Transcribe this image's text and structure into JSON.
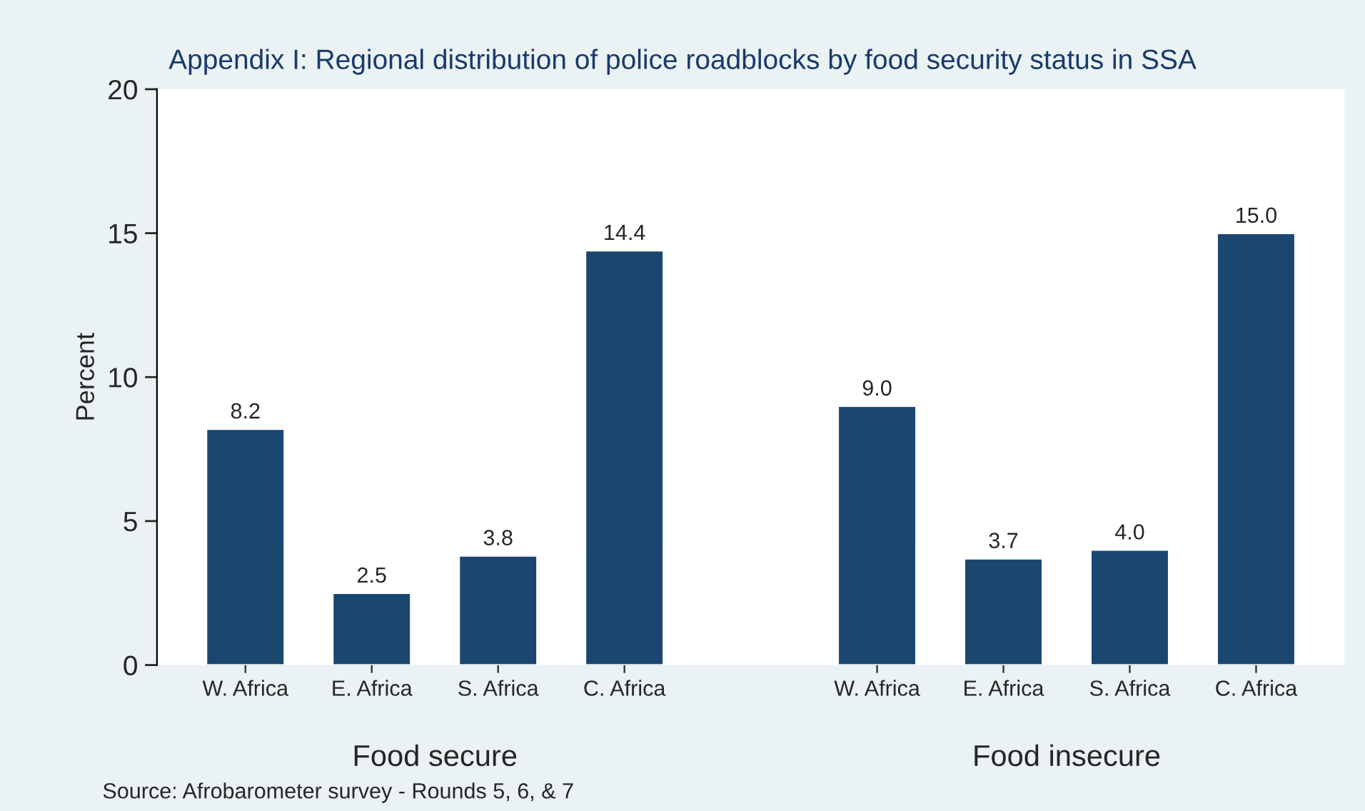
{
  "chart_data": {
    "type": "bar",
    "title": "Appendix I: Regional distribution of police roadblocks by food security status in SSA",
    "ylabel": "Percent",
    "categories": [
      "W. Africa",
      "E. Africa",
      "S. Africa",
      "C. Africa",
      null,
      "W. Africa",
      "E. Africa",
      "S. Africa",
      "C. Africa"
    ],
    "values": [
      8.2,
      2.5,
      3.8,
      14.4,
      null,
      9.0,
      3.7,
      4.0,
      15.0
    ],
    "value_labels": [
      "8.2",
      "2.5",
      "3.8",
      "14.4",
      null,
      "9.0",
      "3.7",
      "4.0",
      "15.0"
    ],
    "color": "#1a4670",
    "ylim": [
      0,
      20
    ],
    "yticks": [
      0,
      5,
      10,
      15,
      20
    ],
    "grid": false,
    "annotations": [
      "Food secure",
      "Food insecure",
      "Source: Afrobarometer survey - Rounds 5, 6, & 7"
    ]
  }
}
